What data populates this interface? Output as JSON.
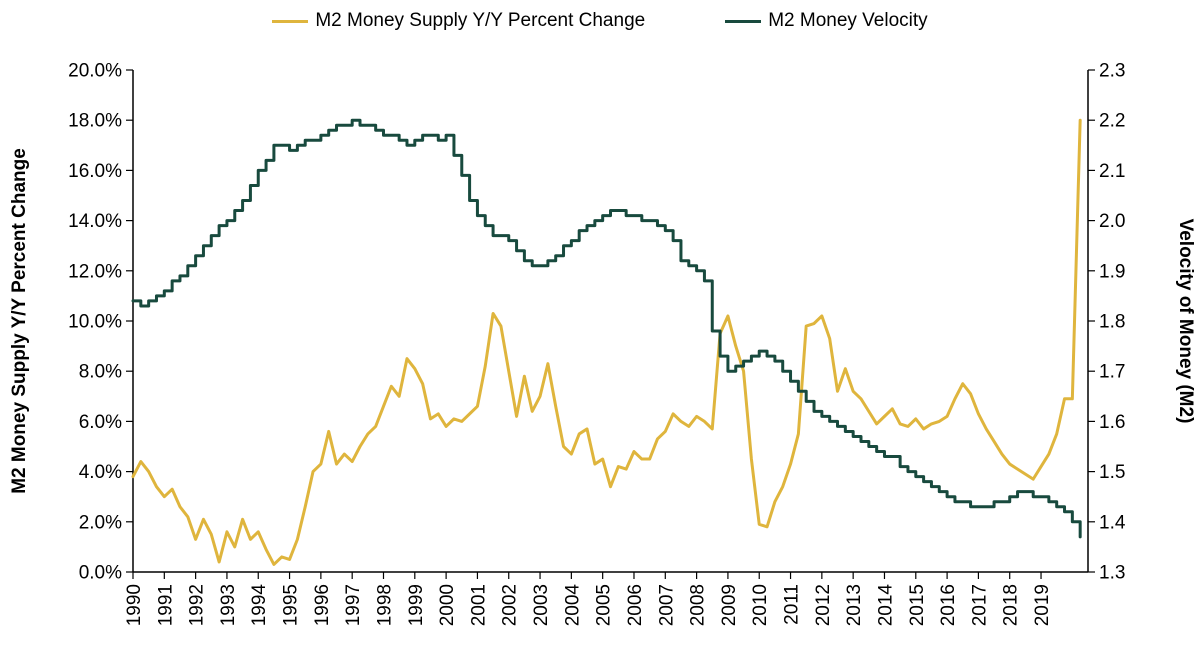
{
  "chart_data": {
    "type": "line",
    "title": "",
    "legend_position": "top",
    "grid": false,
    "x_start": 1990,
    "x_step": 0.25,
    "x_plot_end": 2020.5,
    "x_axis": {
      "tick_labels": [
        "1990",
        "1991",
        "1992",
        "1993",
        "1994",
        "1995",
        "1996",
        "1997",
        "1998",
        "1999",
        "2000",
        "2001",
        "2002",
        "2003",
        "2004",
        "2005",
        "2006",
        "2007",
        "2008",
        "2009",
        "2010",
        "2011",
        "2012",
        "2013",
        "2014",
        "2015",
        "2016",
        "2017",
        "2018",
        "2019"
      ]
    },
    "left_axis": {
      "label": "M2 Money Supply Y/Y Percent Change",
      "min": 0,
      "max": 20,
      "tick_labels": [
        "0.0%",
        "2.0%",
        "4.0%",
        "6.0%",
        "8.0%",
        "10.0%",
        "12.0%",
        "14.0%",
        "16.0%",
        "18.0%",
        "20.0%"
      ]
    },
    "right_axis": {
      "label": "Velocity of Money (M2)",
      "min": 1.3,
      "max": 2.3,
      "tick_labels": [
        "1.3",
        "1.4",
        "1.5",
        "1.6",
        "1.7",
        "1.8",
        "1.9",
        "2.0",
        "2.1",
        "2.2",
        "2.3"
      ]
    },
    "series": [
      {
        "name": "M2 Money Supply Y/Y Percent Change",
        "axis": "left",
        "color": "#DFB53D",
        "line_style": "linear",
        "values": [
          3.8,
          4.4,
          4.0,
          3.4,
          3.0,
          3.3,
          2.6,
          2.2,
          1.3,
          2.1,
          1.5,
          0.4,
          1.6,
          1.0,
          2.1,
          1.3,
          1.6,
          0.9,
          0.3,
          0.6,
          0.5,
          1.3,
          2.6,
          4.0,
          4.3,
          5.6,
          4.3,
          4.7,
          4.4,
          5.0,
          5.5,
          5.8,
          6.6,
          7.4,
          7.0,
          8.5,
          8.1,
          7.5,
          6.1,
          6.3,
          5.8,
          6.1,
          6.0,
          6.3,
          6.6,
          8.2,
          10.3,
          9.8,
          8.0,
          6.2,
          7.8,
          6.4,
          7.0,
          8.3,
          6.6,
          5.0,
          4.7,
          5.5,
          5.7,
          4.3,
          4.5,
          3.4,
          4.2,
          4.1,
          4.8,
          4.5,
          4.5,
          5.3,
          5.6,
          6.3,
          6.0,
          5.8,
          6.2,
          6.0,
          5.7,
          9.5,
          10.2,
          9.0,
          8.0,
          4.5,
          1.9,
          1.8,
          2.8,
          3.4,
          4.3,
          5.5,
          9.8,
          9.9,
          10.2,
          9.3,
          7.2,
          8.1,
          7.2,
          6.9,
          6.4,
          5.9,
          6.2,
          6.5,
          5.9,
          5.8,
          6.1,
          5.7,
          5.9,
          6.0,
          6.2,
          6.9,
          7.5,
          7.1,
          6.3,
          5.7,
          5.2,
          4.7,
          4.3,
          4.1,
          3.9,
          3.7,
          4.2,
          4.7,
          5.5,
          6.9,
          6.9,
          18.0
        ]
      },
      {
        "name": "M2 Money Velocity",
        "axis": "right",
        "color": "#184A3E",
        "line_style": "step",
        "values": [
          1.84,
          1.83,
          1.84,
          1.85,
          1.86,
          1.88,
          1.89,
          1.91,
          1.93,
          1.95,
          1.97,
          1.99,
          2.0,
          2.02,
          2.04,
          2.07,
          2.1,
          2.12,
          2.15,
          2.15,
          2.14,
          2.15,
          2.16,
          2.16,
          2.17,
          2.18,
          2.19,
          2.19,
          2.2,
          2.19,
          2.19,
          2.18,
          2.17,
          2.17,
          2.16,
          2.15,
          2.16,
          2.17,
          2.17,
          2.16,
          2.17,
          2.13,
          2.09,
          2.04,
          2.01,
          1.99,
          1.97,
          1.97,
          1.96,
          1.94,
          1.92,
          1.91,
          1.91,
          1.92,
          1.93,
          1.95,
          1.96,
          1.98,
          1.99,
          2.0,
          2.01,
          2.02,
          2.02,
          2.01,
          2.01,
          2.0,
          2.0,
          1.99,
          1.98,
          1.96,
          1.92,
          1.91,
          1.9,
          1.88,
          1.78,
          1.73,
          1.7,
          1.71,
          1.72,
          1.73,
          1.74,
          1.73,
          1.72,
          1.7,
          1.68,
          1.66,
          1.64,
          1.62,
          1.61,
          1.6,
          1.59,
          1.58,
          1.57,
          1.56,
          1.55,
          1.54,
          1.53,
          1.53,
          1.51,
          1.5,
          1.49,
          1.48,
          1.47,
          1.46,
          1.45,
          1.44,
          1.44,
          1.43,
          1.43,
          1.43,
          1.44,
          1.44,
          1.45,
          1.46,
          1.46,
          1.45,
          1.45,
          1.44,
          1.43,
          1.42,
          1.4,
          1.37
        ]
      }
    ]
  }
}
